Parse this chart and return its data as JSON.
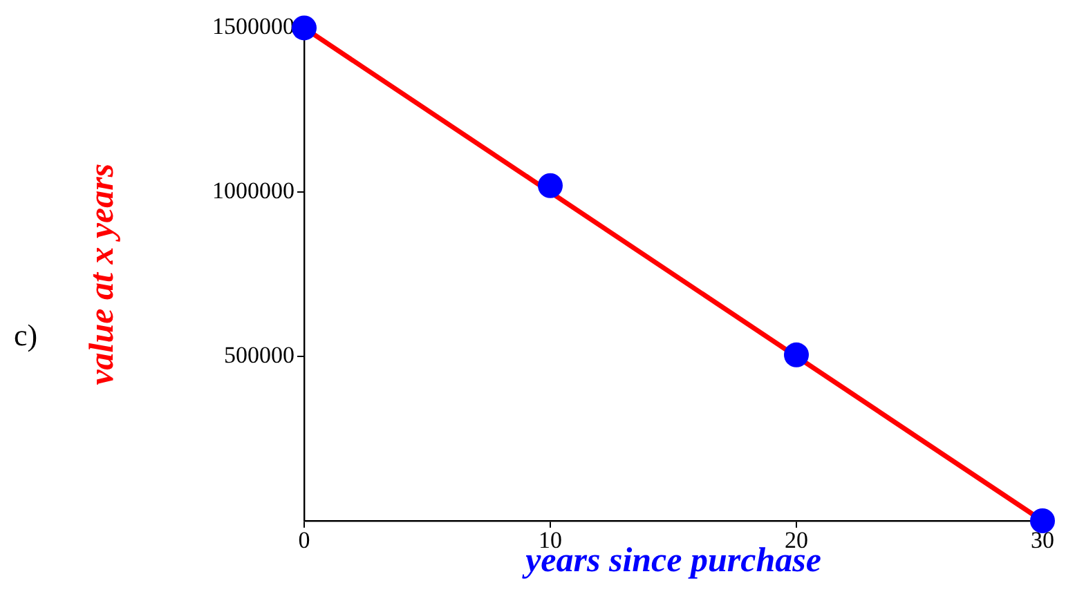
{
  "chart_data": {
    "type": "line",
    "xlabel": "years since purchase",
    "ylabel": "value at x years",
    "annotations": [
      "c)"
    ],
    "xlim": [
      0,
      30
    ],
    "xticks": [
      0,
      10,
      20,
      30
    ],
    "ylim": [
      0,
      1500000
    ],
    "yticks": [
      500000,
      1000000,
      1500000
    ],
    "series": [
      {
        "type": "line",
        "x": [
          0,
          30
        ],
        "values": [
          1500000,
          0
        ],
        "color": "#ff0000",
        "marker": "none",
        "line_style": "solid"
      },
      {
        "type": "scatter",
        "x": [
          0,
          10,
          20,
          30
        ],
        "values": [
          1500000,
          1020000,
          505000,
          0
        ],
        "color": "#0000ff",
        "marker": "circle"
      }
    ]
  }
}
